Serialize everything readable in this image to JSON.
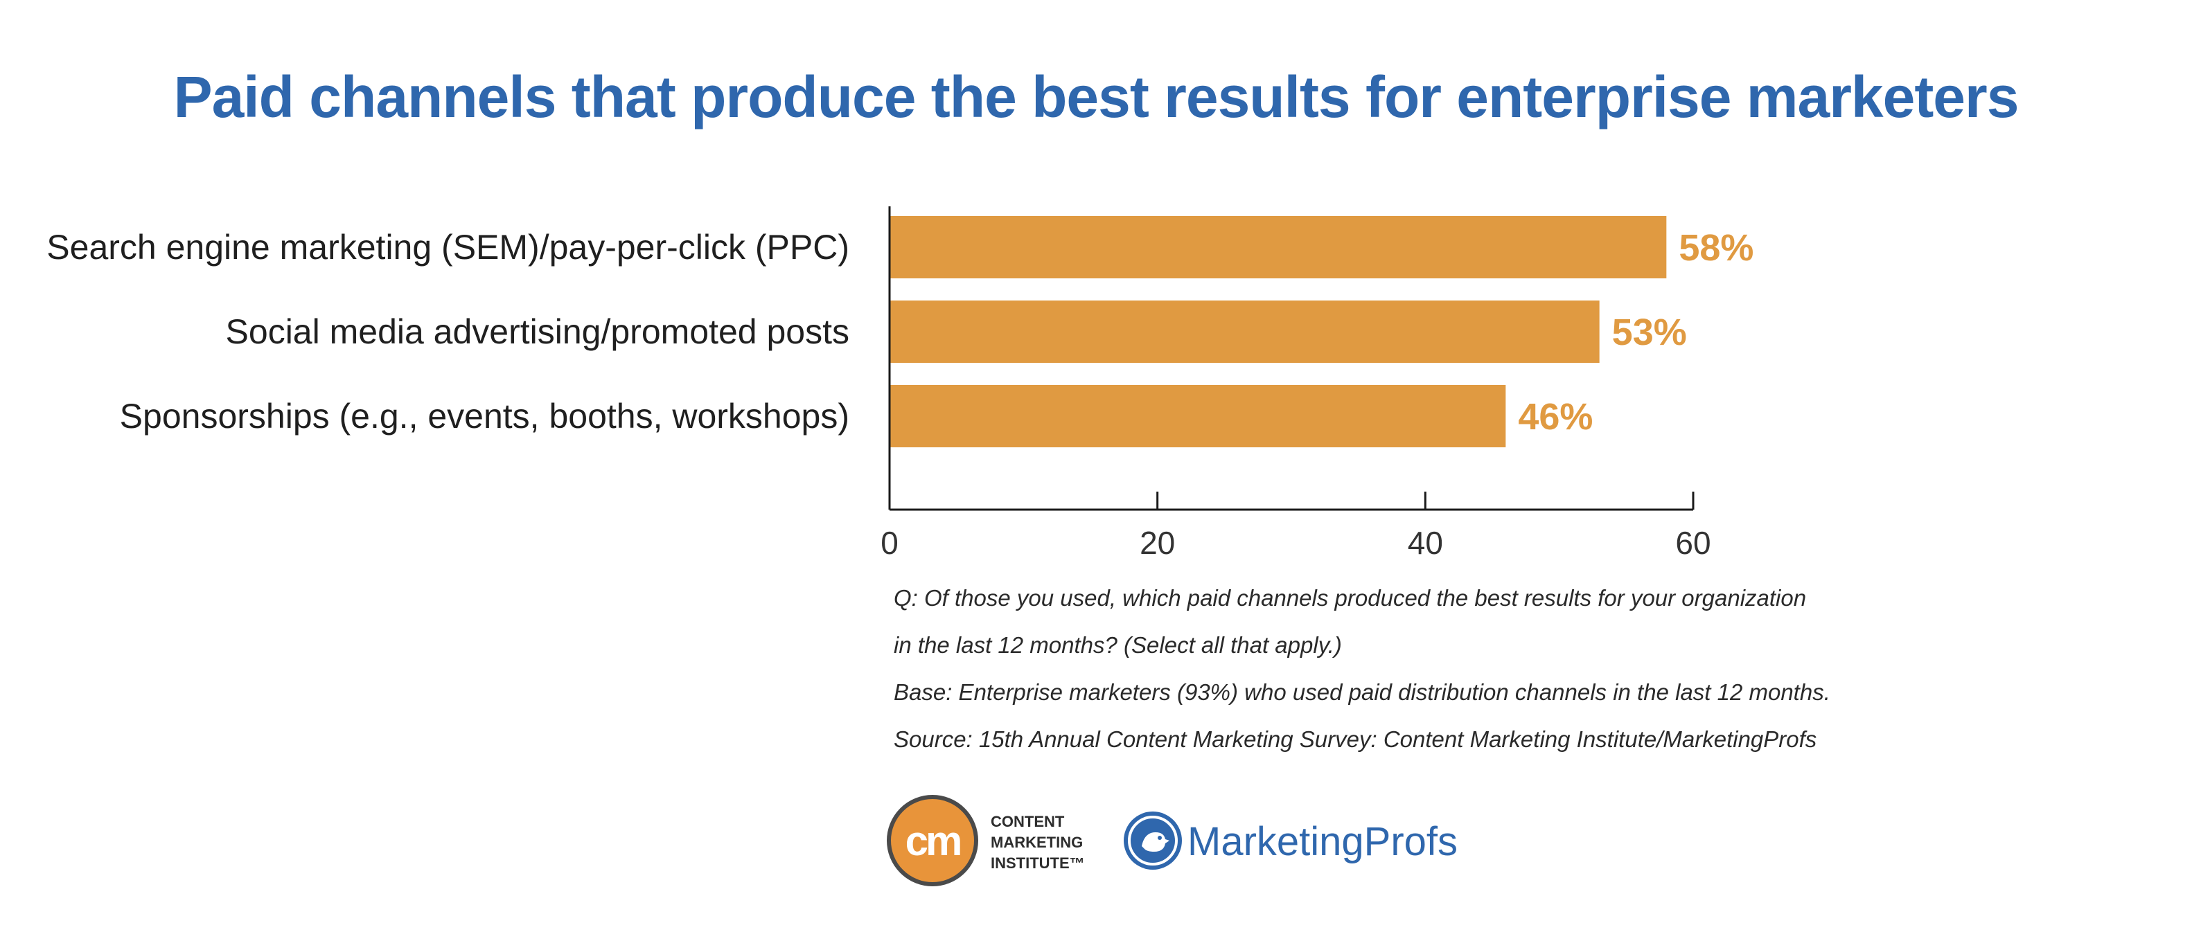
{
  "title": "Paid channels that produce the best results for enterprise marketers",
  "chart_data": {
    "type": "bar",
    "orientation": "horizontal",
    "categories": [
      "Search engine marketing (SEM)/pay-per-click (PPC)",
      "Social media advertising/promoted posts",
      "Sponsorships (e.g., events, booths, workshops)"
    ],
    "values": [
      58,
      53,
      46
    ],
    "value_labels": [
      "58%",
      "53%",
      "46%"
    ],
    "xticks": [
      0,
      20,
      40,
      60
    ],
    "xlim": [
      0,
      60
    ],
    "grid": false,
    "bar_color": "#e09a41",
    "label_color": "#e09a41"
  },
  "notes": [
    "Q: Of those you used, which paid channels produced the best results for your organization",
    "in the last 12 months? (Select all that apply.)",
    "Base: Enterprise marketers (93%) who used paid distribution channels in the last 12 months.",
    "Source: 15th Annual Content Marketing Survey: Content Marketing Institute/MarketingProfs"
  ],
  "logos": {
    "cmi_mark": "cm",
    "cmi_lines": [
      "CONTENT",
      "MARKETING",
      "INSTITUTE™"
    ],
    "mp_name": "MarketingProfs",
    "mp_icon": "bird-icon"
  }
}
